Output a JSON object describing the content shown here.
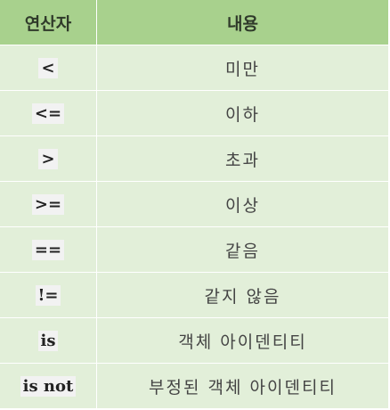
{
  "header": {
    "col_operator": "연산자",
    "col_content": "내용"
  },
  "rows": [
    {
      "op": "<",
      "desc": "미만"
    },
    {
      "op": "<=",
      "desc": "이하"
    },
    {
      "op": ">",
      "desc": "초과"
    },
    {
      "op": ">=",
      "desc": "이상"
    },
    {
      "op": "==",
      "desc": "같음"
    },
    {
      "op": "!=",
      "desc": "같지 않음"
    },
    {
      "op": "is",
      "desc": "객체 아이덴티티"
    },
    {
      "op": "is not",
      "desc": "부정된 객체 아이덴티티"
    }
  ],
  "colors": {
    "header_bg": "#a8d18d",
    "row_bg": "#e2efd9",
    "code_bg": "#f2f2f2"
  }
}
